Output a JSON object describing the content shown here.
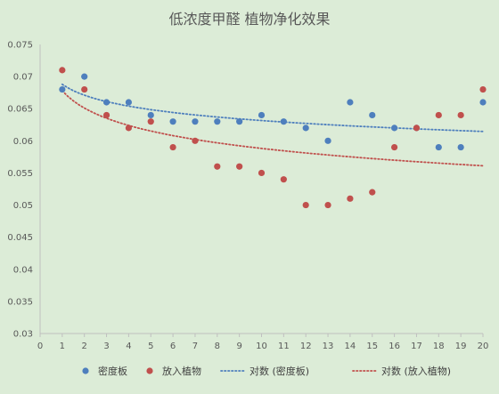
{
  "chart_data": {
    "type": "scatter",
    "title": "低浓度甲醛 植物净化效果",
    "xlabel": "",
    "ylabel": "",
    "xlim": [
      0,
      20
    ],
    "ylim": [
      0.03,
      0.075
    ],
    "x_ticks": [
      0,
      1,
      2,
      3,
      4,
      5,
      6,
      7,
      8,
      9,
      10,
      11,
      12,
      13,
      14,
      15,
      16,
      17,
      18,
      19,
      20
    ],
    "y_ticks": [
      0.03,
      0.035,
      0.04,
      0.045,
      0.05,
      0.055,
      0.06,
      0.065,
      0.07,
      0.075
    ],
    "grid": false,
    "legend_position": "bottom",
    "series": [
      {
        "name": "密度板",
        "color": "#4e7fbd",
        "x": [
          1,
          2,
          3,
          4,
          5,
          6,
          7,
          8,
          9,
          10,
          11,
          12,
          13,
          14,
          15,
          16,
          17,
          18,
          19,
          20
        ],
        "values": [
          0.068,
          0.07,
          0.066,
          0.066,
          0.064,
          0.063,
          0.063,
          0.063,
          0.063,
          0.064,
          0.063,
          0.062,
          0.06,
          0.066,
          0.064,
          0.062,
          0.062,
          0.059,
          0.059,
          0.066
        ]
      },
      {
        "name": "放入植物",
        "color": "#c0504d",
        "x": [
          1,
          2,
          3,
          4,
          5,
          6,
          7,
          8,
          9,
          10,
          11,
          12,
          13,
          14,
          15,
          16,
          17,
          18,
          19,
          20
        ],
        "values": [
          0.071,
          0.068,
          0.064,
          0.062,
          0.063,
          0.059,
          0.06,
          0.056,
          0.056,
          0.055,
          0.054,
          0.05,
          0.05,
          0.051,
          0.052,
          0.059,
          0.062,
          0.064,
          0.064,
          0.068
        ]
      }
    ],
    "trendlines": [
      {
        "name": "对数 (密度板)",
        "color": "#4e7fbd",
        "type": "logarithmic",
        "intercept": 0.0688,
        "slope": -0.00245
      },
      {
        "name": "对数 (放入植物)",
        "color": "#c0504d",
        "type": "logarithmic",
        "intercept": 0.0678,
        "slope": -0.0039
      }
    ]
  }
}
